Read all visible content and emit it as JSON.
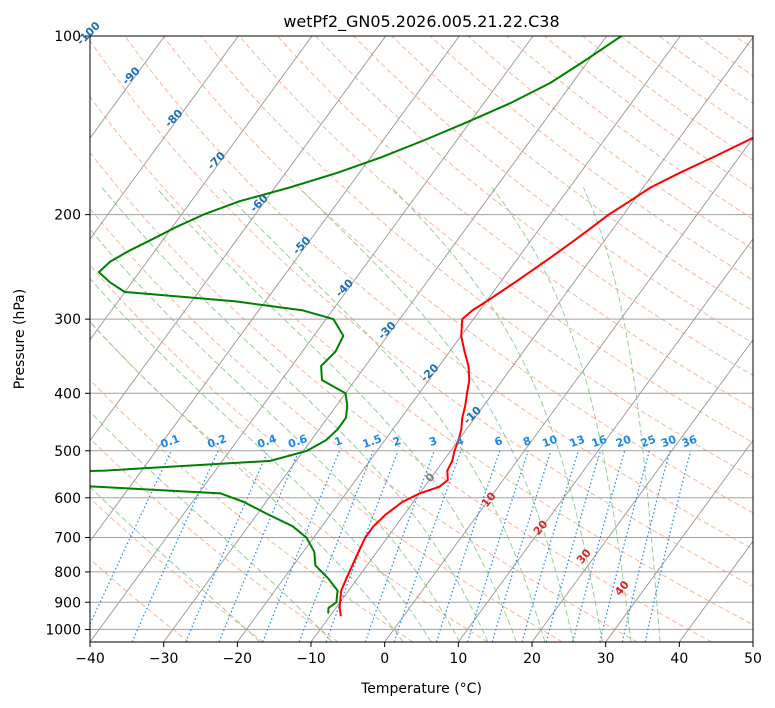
{
  "chart_data": {
    "type": "line",
    "title": "wetPf2_GN05.2026.005.21.22.C38",
    "xlabel": "Temperature (°C)",
    "ylabel": "Pressure (hPa)",
    "xlim": [
      -40,
      50
    ],
    "ylim": [
      1050,
      100
    ],
    "y_scale": "log",
    "grid": true,
    "x_ticks": [
      -40,
      -30,
      -20,
      -10,
      0,
      10,
      20,
      30,
      40,
      50
    ],
    "y_ticks": [
      100,
      200,
      300,
      400,
      500,
      600,
      700,
      800,
      900,
      1000
    ],
    "colors": {
      "temperature": "#ff0000",
      "dewpoint": "#008000",
      "isotherm": "#a0a0a0",
      "dry_adiabat": "#f4a582",
      "moist_adiabat": "#8fc98f",
      "mixing_ratio": "#1e88e5",
      "isotherm_label": "#1f6fb5",
      "moist_label": "#d62728"
    },
    "isotherm_labels": [
      "-100",
      "-90",
      "-80",
      "-70",
      "-60",
      "-50",
      "-40",
      "-30",
      "-20",
      "-10"
    ],
    "mixing_ratio_labels": [
      "0.1",
      "0.2",
      "0.4",
      "0.6",
      "1",
      "1.5",
      "2",
      "3",
      "4",
      "6",
      "8",
      "10",
      "13",
      "16",
      "20",
      "25",
      "30",
      "36"
    ],
    "moist_adiabat_labels": [
      "0",
      "10",
      "20",
      "30",
      "40"
    ],
    "series": [
      {
        "values": [
          [
            7.8,
            100
          ],
          [
            6.0,
            110
          ],
          [
            5.5,
            120
          ],
          [
            4.5,
            130
          ],
          [
            2.5,
            140
          ],
          [
            -0.5,
            150
          ],
          [
            -3.5,
            160
          ],
          [
            -6.5,
            170
          ],
          [
            -9.0,
            180
          ],
          [
            -10.5,
            190
          ],
          [
            -12.0,
            200
          ],
          [
            -13.0,
            210
          ],
          [
            -14.0,
            220
          ],
          [
            -15.0,
            230
          ],
          [
            -16.0,
            240
          ],
          [
            -17.0,
            250
          ],
          [
            -18.0,
            260
          ],
          [
            -19.0,
            270
          ],
          [
            -20.0,
            280
          ],
          [
            -21.0,
            290
          ],
          [
            -21.5,
            300
          ],
          [
            -20.0,
            320
          ],
          [
            -18.0,
            340
          ],
          [
            -16.0,
            360
          ],
          [
            -14.5,
            380
          ],
          [
            -13.5,
            400
          ],
          [
            -12.5,
            420
          ],
          [
            -11.7,
            440
          ],
          [
            -10.7,
            460
          ],
          [
            -10.0,
            480
          ],
          [
            -9.5,
            500
          ],
          [
            -8.8,
            520
          ],
          [
            -8.5,
            540
          ],
          [
            -7.5,
            560
          ],
          [
            -8.0,
            575
          ],
          [
            -10.0,
            590
          ],
          [
            -11.5,
            610
          ],
          [
            -12.5,
            640
          ],
          [
            -13.0,
            670
          ],
          [
            -13.0,
            700
          ],
          [
            -12.5,
            740
          ],
          [
            -12.0,
            780
          ],
          [
            -11.5,
            820
          ],
          [
            -11.0,
            860
          ],
          [
            -10.5,
            880
          ],
          [
            -10.0,
            900
          ],
          [
            -9.5,
            920
          ],
          [
            -8.5,
            950
          ]
        ]
      },
      {
        "values": [
          [
            -28.0,
            100
          ],
          [
            -30.5,
            110
          ],
          [
            -33.0,
            120
          ],
          [
            -36.5,
            130
          ],
          [
            -40.5,
            140
          ],
          [
            -44.5,
            150
          ],
          [
            -48.5,
            160
          ],
          [
            -53.0,
            170
          ],
          [
            -58.0,
            180
          ],
          [
            -63.5,
            190
          ],
          [
            -67.0,
            200
          ],
          [
            -69.5,
            210
          ],
          [
            -71.5,
            220
          ],
          [
            -73.5,
            230
          ],
          [
            -75.0,
            240
          ],
          [
            -75.5,
            250
          ],
          [
            -73.0,
            260
          ],
          [
            -70.0,
            270
          ],
          [
            -54.0,
            280
          ],
          [
            -44.0,
            290
          ],
          [
            -39.0,
            300
          ],
          [
            -36.0,
            320
          ],
          [
            -35.5,
            340
          ],
          [
            -36.0,
            360
          ],
          [
            -34.5,
            380
          ],
          [
            -30.0,
            400
          ],
          [
            -28.5,
            420
          ],
          [
            -27.5,
            440
          ],
          [
            -27.5,
            460
          ],
          [
            -28.0,
            480
          ],
          [
            -29.5,
            500
          ],
          [
            -33.5,
            520
          ],
          [
            -55.0,
            540
          ],
          [
            -80.0,
            550
          ],
          [
            -60.0,
            570
          ],
          [
            -37.0,
            590
          ],
          [
            -33.0,
            610
          ],
          [
            -28.5,
            640
          ],
          [
            -24.0,
            670
          ],
          [
            -21.0,
            700
          ],
          [
            -18.5,
            740
          ],
          [
            -17.0,
            780
          ],
          [
            -14.0,
            820
          ],
          [
            -11.5,
            860
          ],
          [
            -11.0,
            880
          ],
          [
            -10.5,
            900
          ],
          [
            -11.0,
            920
          ],
          [
            -10.5,
            940
          ]
        ]
      }
    ]
  }
}
